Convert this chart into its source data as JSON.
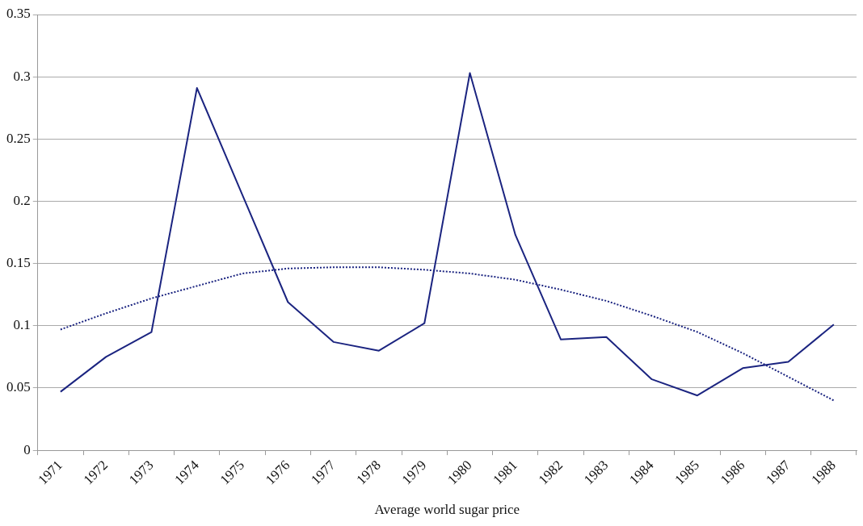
{
  "chart_data": {
    "type": "line",
    "xlabel": "Average world sugar price",
    "categories": [
      "1971",
      "1972",
      "1973",
      "1974",
      "1975",
      "1976",
      "1977",
      "1978",
      "1979",
      "1980",
      "1981",
      "1982",
      "1983",
      "1984",
      "1985",
      "1986",
      "1987",
      "1988"
    ],
    "series": [
      {
        "color": "#1b2480",
        "values": [
          0.047,
          0.075,
          0.095,
          0.291,
          0.205,
          0.119,
          0.087,
          0.08,
          0.102,
          0.303,
          0.173,
          0.089,
          0.091,
          0.057,
          0.044,
          0.066,
          0.071,
          0.101
        ],
        "line_style": "solid"
      },
      {
        "color": "#1b2480",
        "values": [
          0.097,
          0.11,
          0.122,
          0.132,
          0.142,
          0.146,
          0.147,
          0.147,
          0.145,
          0.142,
          0.137,
          0.129,
          0.12,
          0.108,
          0.095,
          0.078,
          0.059,
          0.04
        ],
        "line_style": "dotted"
      }
    ],
    "ylim": [
      0,
      0.35
    ],
    "yticks": [
      0,
      0.05,
      0.1,
      0.15,
      0.2,
      0.25,
      0.3,
      0.35
    ],
    "grid": "y",
    "marker": "none",
    "legend": false
  }
}
